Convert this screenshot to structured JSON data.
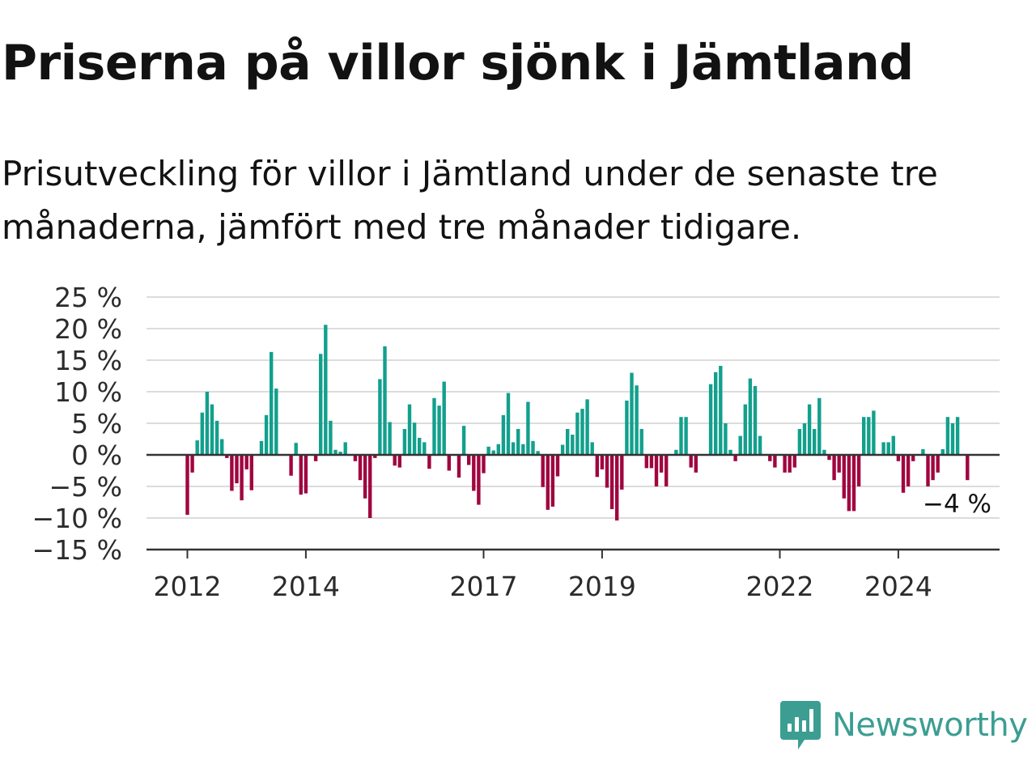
{
  "title": "Priserna på villor sjönk i Jämtland",
  "subtitle": "Prisutveckling för villor i Jämtland under de senaste tre månaderna, jämfört med tre månader tidigare.",
  "brand": {
    "name": "Newsworthy",
    "icon": "newsworthy-logo-icon",
    "color": "#3c9e92"
  },
  "colors": {
    "positive": "#12a08d",
    "negative": "#a0053f",
    "grid": "#dcdcdc",
    "axis": "#333333"
  },
  "chart_data": {
    "type": "bar",
    "title": "",
    "xlabel": "",
    "ylabel": "",
    "y_unit": "%",
    "ylim": [
      -15,
      25
    ],
    "y_ticks": [
      25,
      20,
      15,
      10,
      5,
      0,
      -5,
      -10,
      -15
    ],
    "y_tick_labels": [
      "25 %",
      "20 %",
      "15 %",
      "10 %",
      "5 %",
      "0 %",
      "−5 %",
      "−10 %",
      "−15 %"
    ],
    "x_tick_labels": [
      {
        "label": "2012",
        "year": 2012
      },
      {
        "label": "2014",
        "year": 2014
      },
      {
        "label": "2017",
        "year": 2017
      },
      {
        "label": "2019",
        "year": 2019
      },
      {
        "label": "2022",
        "year": 2022
      },
      {
        "label": "2024",
        "year": 2024
      }
    ],
    "grid": true,
    "start_period": "2012-01",
    "end_period": "2025-03",
    "frequency": "monthly",
    "values": [
      -9.5,
      -2.8,
      2.3,
      6.7,
      10.0,
      8.0,
      5.4,
      2.5,
      -0.5,
      -5.7,
      -4.5,
      -7.2,
      -2.3,
      -5.6,
      0,
      2.2,
      6.3,
      16.3,
      10.5,
      0,
      0,
      -3.3,
      1.9,
      -6.3,
      -6.1,
      0,
      -1.0,
      16.0,
      20.6,
      5.4,
      0.8,
      0.5,
      2.0,
      0,
      -1.0,
      -4.0,
      -6.9,
      -10.0,
      -0.5,
      12.0,
      17.2,
      5.2,
      -1.7,
      -2.0,
      4.1,
      8.0,
      5.1,
      2.7,
      2.0,
      -2.2,
      9.0,
      7.8,
      11.6,
      -2.5,
      0,
      -3.6,
      4.6,
      -1.6,
      -5.7,
      -7.9,
      -2.9,
      1.3,
      0.7,
      1.7,
      6.3,
      9.8,
      2.0,
      4.1,
      1.7,
      8.4,
      2.2,
      0.6,
      -5.1,
      -8.7,
      -8.2,
      -3.4,
      1.6,
      4.1,
      3.2,
      6.7,
      7.3,
      8.8,
      2.0,
      -3.5,
      -2.3,
      -5.2,
      -8.6,
      -10.4,
      -5.5,
      8.6,
      13.0,
      11.0,
      4.1,
      -2.1,
      -2.1,
      -5.0,
      -2.8,
      -5.0,
      0,
      0.8,
      6.0,
      6.0,
      -2.0,
      -2.8,
      0,
      0,
      11.2,
      13.1,
      14.1,
      5.0,
      0.8,
      -1.0,
      3.0,
      8.0,
      12.1,
      10.9,
      3.0,
      0,
      -1.0,
      -2.0,
      0,
      -2.8,
      -2.8,
      -2.0,
      4.1,
      5.0,
      8.0,
      4.1,
      9.0,
      0.8,
      -0.8,
      -4.0,
      -2.8,
      -6.9,
      -8.9,
      -8.9,
      -5.0,
      6.0,
      6.0,
      7.0,
      0,
      2.0,
      2.0,
      3.0,
      -1.0,
      -6.0,
      -5.0,
      -1.0,
      0,
      0.9,
      -5.0,
      -4.0,
      -2.8,
      0.9,
      6.0,
      5.0,
      6.0,
      0,
      -4.0
    ],
    "last_value_label": "−4 %"
  }
}
